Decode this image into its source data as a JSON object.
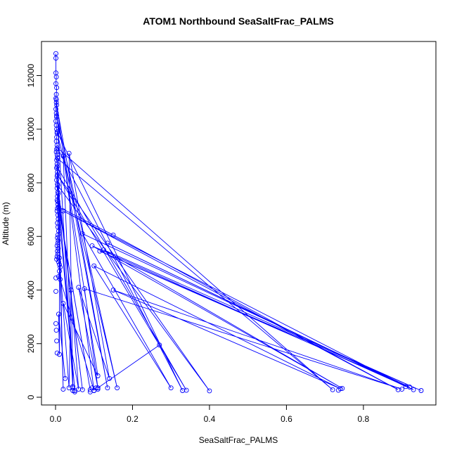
{
  "chart_data": {
    "type": "line",
    "title": "ATOM1 Northbound SeaSaltFrac_PALMS",
    "xlabel": "SeaSaltFrac_PALMS",
    "ylabel": "Altitude (m)",
    "xlim": [
      0,
      0.95
    ],
    "ylim": [
      0,
      12800
    ],
    "xticks": [
      0.0,
      0.2,
      0.4,
      0.6,
      0.8
    ],
    "xtick_labels": [
      "0.0",
      "0.2",
      "0.4",
      "0.6",
      "0.8"
    ],
    "yticks": [
      0,
      2000,
      4000,
      6000,
      8000,
      10000,
      12000
    ],
    "ytick_labels": [
      "0",
      "2000",
      "4000",
      "6000",
      "8000",
      "10000",
      "12000"
    ],
    "grid": false,
    "series": [
      {
        "color": "#0000ff",
        "points": [
          [
            0.001,
            12820
          ],
          [
            0.001,
            12650
          ],
          [
            0.001,
            12100
          ],
          [
            0.002,
            11950
          ],
          [
            0.001,
            11700
          ],
          [
            0.003,
            11550
          ],
          [
            0.002,
            11300
          ],
          [
            0.001,
            11150
          ],
          [
            0.002,
            11000
          ],
          [
            0.001,
            10750
          ],
          [
            0.002,
            10600
          ],
          [
            0.003,
            10450
          ],
          [
            0.001,
            10300
          ],
          [
            0.002,
            10150
          ],
          [
            0.003,
            10000
          ],
          [
            0.004,
            9850
          ],
          [
            0.003,
            9700
          ],
          [
            0.002,
            9550
          ],
          [
            0.004,
            9400
          ],
          [
            0.003,
            9250
          ],
          [
            0.002,
            9150
          ],
          [
            0.004,
            9050
          ],
          [
            0.005,
            8950
          ],
          [
            0.003,
            8850
          ],
          [
            0.004,
            8700
          ],
          [
            0.003,
            8550
          ],
          [
            0.005,
            8400
          ],
          [
            0.004,
            8250
          ],
          [
            0.003,
            8100
          ],
          [
            0.005,
            7950
          ],
          [
            0.004,
            7800
          ],
          [
            0.006,
            7650
          ],
          [
            0.005,
            7500
          ],
          [
            0.004,
            7350
          ],
          [
            0.006,
            7200
          ],
          [
            0.005,
            7050
          ],
          [
            0.004,
            6950
          ],
          [
            0.006,
            6800
          ],
          [
            0.007,
            6650
          ],
          [
            0.005,
            6500
          ],
          [
            0.006,
            6350
          ],
          [
            0.008,
            6200
          ],
          [
            0.006,
            6050
          ],
          [
            0.005,
            5950
          ],
          [
            0.007,
            5850
          ],
          [
            0.006,
            5750
          ],
          [
            0.004,
            5650
          ],
          [
            0.007,
            5550
          ],
          [
            0.005,
            5450
          ],
          [
            0.006,
            5350
          ],
          [
            0.004,
            5250
          ],
          [
            0.003,
            5150
          ],
          [
            0.008,
            5050
          ],
          [
            0.01,
            4950
          ],
          [
            0.012,
            4850
          ],
          [
            0.01,
            4700
          ],
          [
            0.008,
            4500
          ],
          [
            0.012,
            4400
          ],
          [
            0.1,
            250
          ],
          [
            0.002,
            11100
          ],
          [
            0.045,
            350
          ],
          [
            0.003,
            10900
          ],
          [
            0.135,
            350
          ],
          [
            0.003,
            10500
          ],
          [
            0.16,
            350
          ],
          [
            0.004,
            9900
          ],
          [
            0.33,
            250
          ],
          [
            0.005,
            9300
          ],
          [
            0.72,
            280
          ],
          [
            0.006,
            8900
          ],
          [
            0.02,
            300
          ],
          [
            0.004,
            8600
          ],
          [
            0.34,
            260
          ],
          [
            0.005,
            8300
          ],
          [
            0.4,
            240
          ],
          [
            0.006,
            7900
          ],
          [
            0.07,
            280
          ],
          [
            0.007,
            7600
          ],
          [
            0.05,
            250
          ],
          [
            0.006,
            7300
          ],
          [
            0.09,
            280
          ],
          [
            0.008,
            7100
          ],
          [
            0.15,
            6050
          ],
          [
            0.89,
            280
          ],
          [
            0.02,
            6950
          ],
          [
            0.91,
            400
          ],
          [
            0.135,
            5750
          ],
          [
            0.93,
            280
          ],
          [
            0.095,
            5650
          ],
          [
            0.745,
            330
          ],
          [
            0.125,
            5500
          ],
          [
            0.95,
            250
          ],
          [
            0.115,
            5450
          ],
          [
            0.92,
            380
          ],
          [
            0.07,
            6100
          ],
          [
            0.3,
            350
          ],
          [
            0.1,
            4900
          ],
          [
            0.74,
            320
          ],
          [
            0.15,
            4000
          ],
          [
            0.9,
            300
          ],
          [
            0.075,
            4050
          ],
          [
            0.11,
            350
          ],
          [
            0.27,
            1950
          ],
          [
            0.11,
            350
          ],
          [
            0.06,
            4100
          ],
          [
            0.14,
            700
          ],
          [
            0.035,
            9100
          ],
          [
            0.045,
            400
          ],
          [
            0.02,
            9000
          ],
          [
            0.11,
            800
          ],
          [
            0.02,
            3500
          ],
          [
            0.06,
            300
          ],
          [
            0.04,
            4000
          ],
          [
            0.035,
            350
          ],
          [
            0.01,
            5200
          ],
          [
            0.01,
            1600
          ],
          [
            0.008,
            3100
          ],
          [
            0.025,
            700
          ]
        ]
      }
    ],
    "markers_only": [
      [
        0.001,
        2750
      ],
      [
        0.002,
        2500
      ],
      [
        0.003,
        2100
      ],
      [
        0.004,
        1650
      ],
      [
        0.001,
        3950
      ],
      [
        0.001,
        4450
      ],
      [
        0.045,
        400
      ],
      [
        0.05,
        200
      ],
      [
        0.045,
        250
      ],
      [
        0.09,
        200
      ],
      [
        0.11,
        300
      ],
      [
        0.105,
        350
      ],
      [
        0.1,
        250
      ],
      [
        0.095,
        350
      ],
      [
        0.735,
        260
      ]
    ]
  }
}
